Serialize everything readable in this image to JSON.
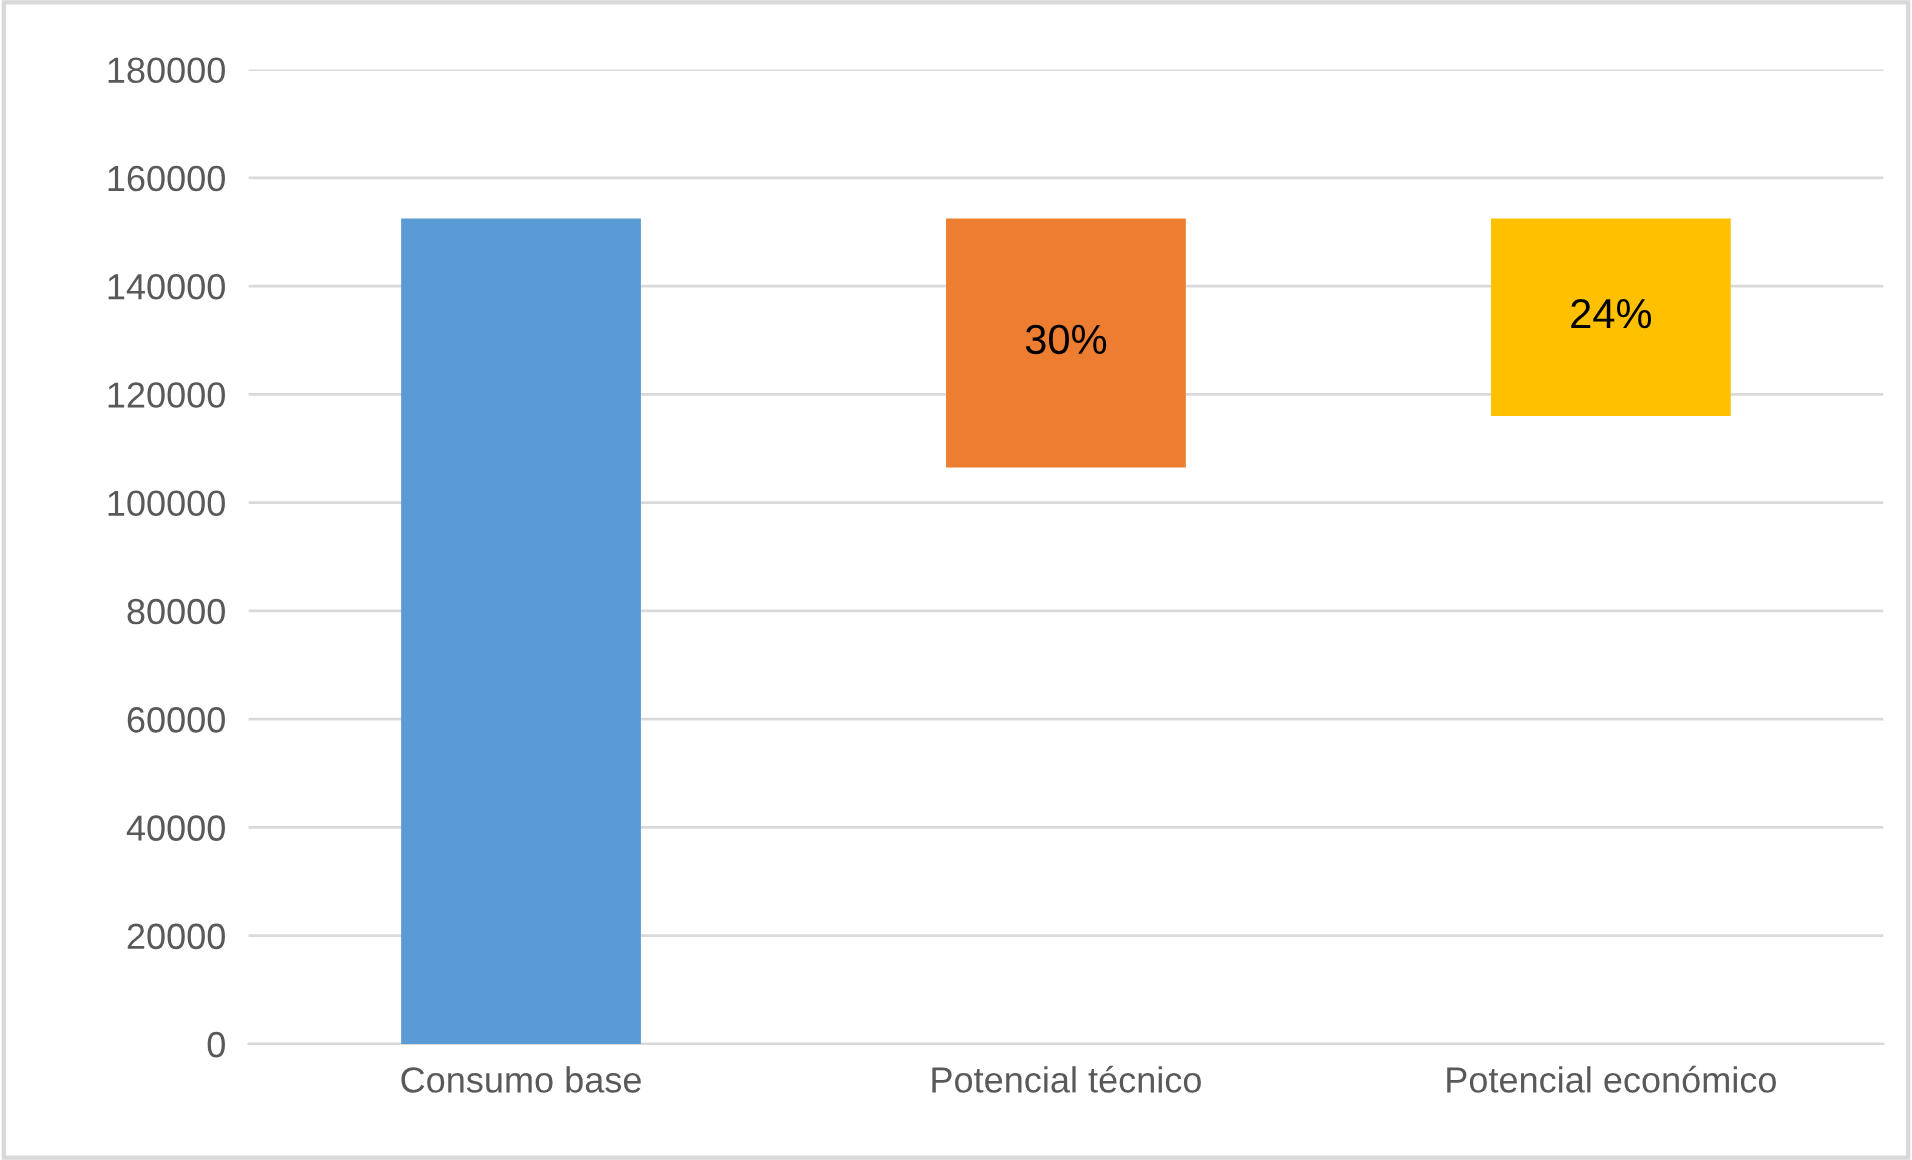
{
  "chart_data": {
    "type": "bar",
    "categories": [
      "Consumo base",
      "Potencial técnico",
      "Potencial económico"
    ],
    "values": [
      152500,
      46000,
      36500
    ],
    "base": [
      0,
      106500,
      116000
    ],
    "colors": [
      "#5b9bd5",
      "#ed7d31",
      "#ffc000"
    ],
    "ylim": [
      0,
      180000
    ],
    "yticks": [
      0,
      20000,
      40000,
      60000,
      80000,
      100000,
      120000,
      140000,
      160000,
      180000
    ],
    "grid": "y",
    "annotations": [
      "30%",
      "24%"
    ]
  }
}
